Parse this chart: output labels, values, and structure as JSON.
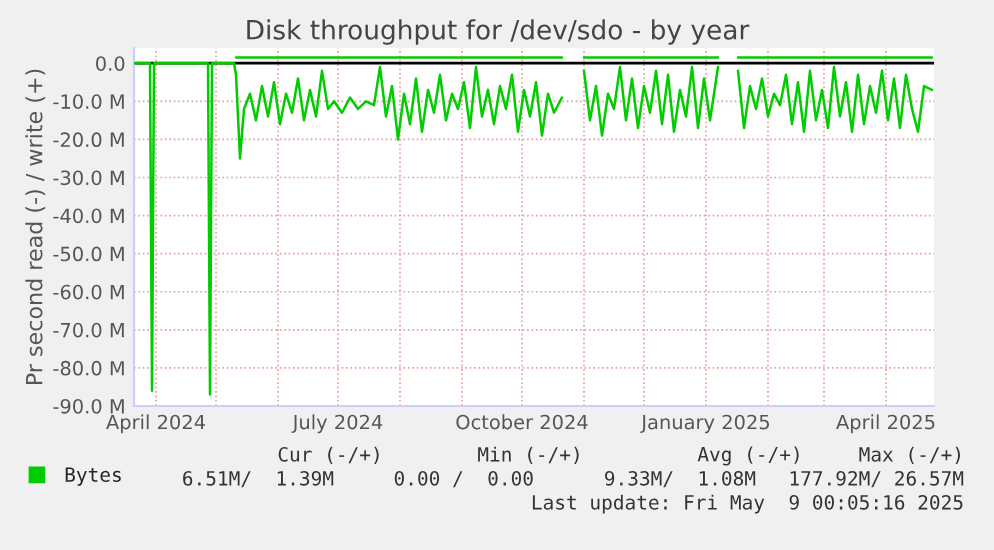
{
  "chart_data": {
    "type": "line",
    "title": "Disk throughput for /dev/sdo - by year",
    "ylabel": "Pr second read (-) / write (+)",
    "ylim": [
      -90,
      4
    ],
    "yticks": [
      {
        "value": 0,
        "label": "0.0"
      },
      {
        "value": -10,
        "label": "-10.0 M"
      },
      {
        "value": -20,
        "label": "-20.0 M"
      },
      {
        "value": -30,
        "label": "-30.0 M"
      },
      {
        "value": -40,
        "label": "-40.0 M"
      },
      {
        "value": -50,
        "label": "-50.0 M"
      },
      {
        "value": -60,
        "label": "-60.0 M"
      },
      {
        "value": -70,
        "label": "-70.0 M"
      },
      {
        "value": -80,
        "label": "-80.0 M"
      },
      {
        "value": -90,
        "label": "-90.0 M"
      }
    ],
    "xlim": [
      "2024-03-21",
      "2025-04-25"
    ],
    "xticks": [
      {
        "value": "2024-04-01",
        "label": "April 2024"
      },
      {
        "value": "2024-05-01",
        "label": null
      },
      {
        "value": "2024-06-01",
        "label": null
      },
      {
        "value": "2024-07-01",
        "label": "July 2024"
      },
      {
        "value": "2024-08-01",
        "label": null
      },
      {
        "value": "2024-09-01",
        "label": null
      },
      {
        "value": "2024-10-01",
        "label": "October 2024"
      },
      {
        "value": "2024-11-01",
        "label": null
      },
      {
        "value": "2024-12-01",
        "label": null
      },
      {
        "value": "2025-01-01",
        "label": "January 2025"
      },
      {
        "value": "2025-02-01",
        "label": null
      },
      {
        "value": "2025-03-01",
        "label": null
      },
      {
        "value": "2025-04-01",
        "label": "April 2025"
      }
    ],
    "grid": true,
    "legend": "bottom",
    "ref_lines": [
      {
        "axis": "y",
        "value": 0,
        "color": "#000000"
      }
    ],
    "series": [
      {
        "name": "Bytes",
        "color": "#00cc00",
        "x": [
          "2024-03-21",
          "2024-03-29",
          "2024-03-30",
          "2024-03-31",
          "2024-04-27",
          "2024-04-28",
          "2024-04-29",
          "2024-05-10",
          "2024-05-11",
          "2024-05-13",
          "2024-05-15",
          "2024-05-18",
          "2024-05-21",
          "2024-05-24",
          "2024-05-27",
          "2024-05-30",
          "2024-06-02",
          "2024-06-05",
          "2024-06-08",
          "2024-06-11",
          "2024-06-14",
          "2024-06-17",
          "2024-06-20",
          "2024-06-23",
          "2024-06-26",
          "2024-06-29",
          "2024-07-03",
          "2024-07-07",
          "2024-07-11",
          "2024-07-15",
          "2024-07-19",
          "2024-07-22",
          "2024-07-25",
          "2024-07-28",
          "2024-07-31",
          "2024-08-03",
          "2024-08-06",
          "2024-08-09",
          "2024-08-12",
          "2024-08-15",
          "2024-08-18",
          "2024-08-21",
          "2024-08-24",
          "2024-08-27",
          "2024-08-30",
          "2024-09-02",
          "2024-09-05",
          "2024-09-08",
          "2024-09-11",
          "2024-09-14",
          "2024-09-17",
          "2024-09-20",
          "2024-09-23",
          "2024-09-26",
          "2024-09-29",
          "2024-10-02",
          "2024-10-05",
          "2024-10-08",
          "2024-10-11",
          "2024-10-14",
          "2024-10-17",
          "2024-10-21",
          "2024-10-26",
          "2024-11-01",
          "2024-11-04",
          "2024-11-07",
          "2024-11-10",
          "2024-11-13",
          "2024-11-16",
          "2024-11-19",
          "2024-11-22",
          "2024-11-25",
          "2024-11-28",
          "2024-12-01",
          "2024-12-04",
          "2024-12-07",
          "2024-12-10",
          "2024-12-13",
          "2024-12-16",
          "2024-12-19",
          "2024-12-22",
          "2024-12-25",
          "2024-12-28",
          "2024-12-31",
          "2025-01-03",
          "2025-01-07",
          "2025-01-12",
          "2025-01-17",
          "2025-01-20",
          "2025-01-23",
          "2025-01-26",
          "2025-01-29",
          "2025-02-01",
          "2025-02-04",
          "2025-02-07",
          "2025-02-10",
          "2025-02-13",
          "2025-02-16",
          "2025-02-19",
          "2025-02-22",
          "2025-02-25",
          "2025-02-28",
          "2025-03-03",
          "2025-03-06",
          "2025-03-09",
          "2025-03-12",
          "2025-03-15",
          "2025-03-18",
          "2025-03-21",
          "2025-03-24",
          "2025-03-27",
          "2025-03-30",
          "2025-04-02",
          "2025-04-05",
          "2025-04-08",
          "2025-04-11",
          "2025-04-14",
          "2025-04-17",
          "2025-04-20",
          "2025-04-24"
        ],
        "values": [
          0,
          0,
          -86,
          0,
          0,
          -87,
          0,
          0,
          -3,
          -25,
          -12,
          -8,
          -15,
          -6,
          -14,
          -5,
          -16,
          -8,
          -13,
          -4,
          -15,
          -7,
          -14,
          -2,
          -12,
          -10,
          -13,
          -9,
          -12,
          -10,
          -11,
          -1,
          -14,
          -6,
          -20,
          -8,
          -16,
          -4,
          -18,
          -7,
          -13,
          -3,
          -15,
          -8,
          -12,
          -5,
          -17,
          -1,
          -14,
          -7,
          -16,
          -6,
          -12,
          -3,
          -18,
          -7,
          -14,
          -5,
          -19,
          -8,
          -13,
          -9,
          null,
          -2,
          -15,
          -6,
          -19,
          -8,
          -12,
          -1,
          -15,
          -4,
          -17,
          -6,
          -13,
          -2,
          -16,
          -3,
          -18,
          -7,
          -14,
          -1,
          -17,
          -4,
          -15,
          -1,
          null,
          -2,
          -17,
          -6,
          -12,
          -4,
          -14,
          -8,
          -11,
          -3,
          -16,
          -5,
          -18,
          -2,
          -15,
          -7,
          -17,
          -1,
          -14,
          -5,
          -18,
          -3,
          -16,
          -6,
          -13,
          -2,
          -15,
          -4,
          -17,
          -3,
          -12,
          -18,
          -6,
          -7
        ]
      },
      {
        "color": "#00cc00",
        "x": [
          "2024-05-11",
          "2024-06-15",
          "2024-07-20",
          "2024-08-25",
          "2024-09-30",
          "2024-10-21",
          "2024-10-26",
          "2024-11-01",
          "2024-12-10",
          "2025-01-07",
          "2025-01-12",
          "2025-01-17",
          "2025-02-20",
          "2025-03-25",
          "2025-04-24"
        ],
        "values": [
          1.5,
          1.5,
          1.5,
          1.5,
          1.5,
          1.5,
          null,
          1.5,
          1.5,
          1.5,
          null,
          1.5,
          1.5,
          1.5,
          1.5
        ]
      }
    ],
    "annotations": [
      "Cur (-/+)",
      "Min (-/+)",
      "Avg (-/+)",
      "Max (-/+)",
      "6.51M/  1.39M",
      "0.00 /  0.00",
      "9.33M/  1.08M",
      "177.92M/ 26.57M",
      "Last update: Fri May  9 00:05:16 2025"
    ]
  }
}
